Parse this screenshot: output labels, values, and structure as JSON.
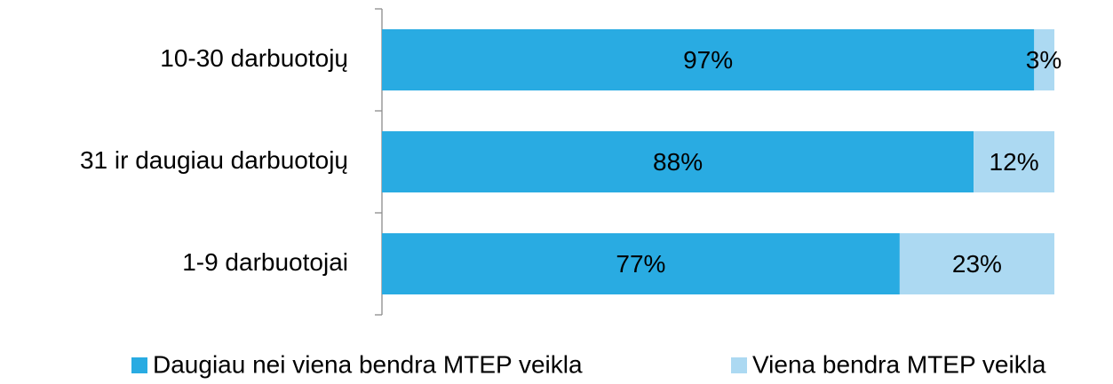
{
  "chart_data": {
    "type": "stacked_bar_horizontal",
    "categories": [
      "10-30 darbuotojų",
      "31 ir daugiau darbuotojų",
      "1-9 darbuotojai"
    ],
    "series": [
      {
        "name": "Daugiau nei viena bendra MTEP veikla",
        "color": "#29abe2",
        "values": [
          97,
          88,
          77
        ],
        "value_labels": [
          "97%",
          "88%",
          "77%"
        ]
      },
      {
        "name": "Viena bendra MTEP veikla",
        "color": "#acd9f2",
        "values": [
          3,
          12,
          23
        ],
        "value_labels": [
          "3%",
          "12%",
          "23%"
        ]
      }
    ],
    "legend": "bottom"
  }
}
